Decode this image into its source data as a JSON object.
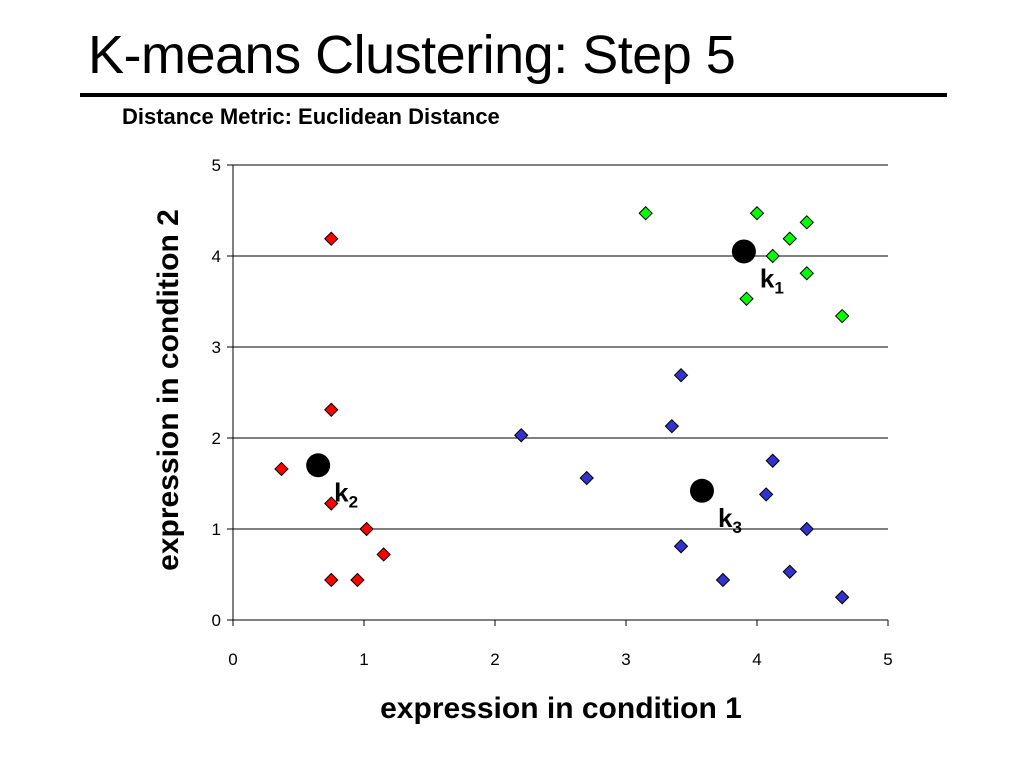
{
  "slide": {
    "title": "K-means Clustering: Step 5",
    "subtitle": "Distance Metric: Euclidean Distance"
  },
  "colors": {
    "cluster_1": "#00ff00",
    "cluster_2": "#ff0000",
    "cluster_3": "#3333cc",
    "centroid": "#000000",
    "grid": "#000000",
    "background": "#ffffff"
  },
  "chart_data": {
    "type": "scatter",
    "title": "",
    "xlabel": "expression in condition 1",
    "ylabel": "expression in condition 2",
    "xlim": [
      0,
      5
    ],
    "ylim": [
      0,
      5
    ],
    "xticks": [
      "0",
      "1",
      "2",
      "3",
      "4",
      "5"
    ],
    "yticks": [
      "0",
      "1",
      "2",
      "3",
      "4",
      "5"
    ],
    "grid": "horizontal",
    "marker": "diamond",
    "series": [
      {
        "cluster": "k1",
        "color": "#00ff00",
        "points": [
          [
            3.15,
            4.47
          ],
          [
            4.0,
            4.47
          ],
          [
            4.12,
            4.0
          ],
          [
            4.25,
            4.19
          ],
          [
            4.38,
            4.37
          ],
          [
            3.92,
            3.53
          ],
          [
            4.38,
            3.81
          ],
          [
            4.65,
            3.34
          ]
        ]
      },
      {
        "cluster": "k2",
        "color": "#ff0000",
        "points": [
          [
            0.75,
            4.19
          ],
          [
            0.75,
            2.31
          ],
          [
            0.37,
            1.66
          ],
          [
            0.75,
            1.28
          ],
          [
            1.02,
            1.0
          ],
          [
            1.15,
            0.72
          ],
          [
            0.75,
            0.44
          ],
          [
            0.95,
            0.44
          ]
        ]
      },
      {
        "cluster": "k3",
        "color": "#3333cc",
        "points": [
          [
            2.2,
            2.03
          ],
          [
            2.7,
            1.56
          ],
          [
            3.35,
            2.13
          ],
          [
            3.42,
            2.69
          ],
          [
            4.12,
            1.75
          ],
          [
            4.07,
            1.38
          ],
          [
            4.38,
            1.0
          ],
          [
            3.42,
            0.81
          ],
          [
            3.74,
            0.44
          ],
          [
            4.25,
            0.53
          ],
          [
            4.65,
            0.25
          ]
        ]
      }
    ],
    "centroids": [
      {
        "label": "k",
        "subscript": "1",
        "x": 3.9,
        "y": 4.05
      },
      {
        "label": "k",
        "subscript": "2",
        "x": 0.65,
        "y": 1.7
      },
      {
        "label": "k",
        "subscript": "3",
        "x": 3.58,
        "y": 1.42
      }
    ]
  }
}
